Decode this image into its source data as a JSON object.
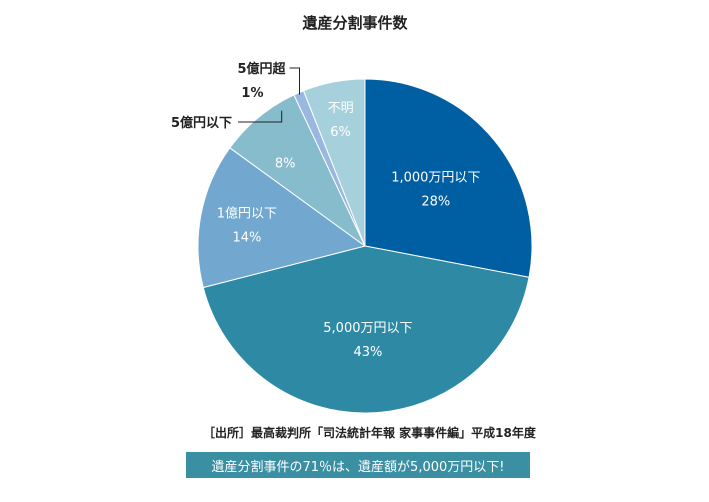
{
  "chart_data": {
    "type": "pie",
    "title": "遺産分割事件数",
    "slices": [
      {
        "label": "1,000万円以下",
        "value": 28,
        "value_label": "28%",
        "color": "#005ea2"
      },
      {
        "label": "5,000万円以下",
        "value": 43,
        "value_label": "43%",
        "color": "#2e8aa4"
      },
      {
        "label": "1億円以下",
        "value": 14,
        "value_label": "14%",
        "color": "#72a8cf"
      },
      {
        "label": "5億円以下",
        "value": 8,
        "value_label": "8%",
        "color": "#86bccb"
      },
      {
        "label": "5億円超",
        "value": 1,
        "value_label": "1%",
        "color": "#9ab8df"
      },
      {
        "label": "不明",
        "value": 6,
        "value_label": "6%",
        "color": "#a6d0dc"
      }
    ]
  },
  "source": "［出所］最高裁判所「司法統計年報 家事事件編」平成18年度",
  "banner": "遺産分割事件の71％は、遺産額が5,000万円以下!"
}
